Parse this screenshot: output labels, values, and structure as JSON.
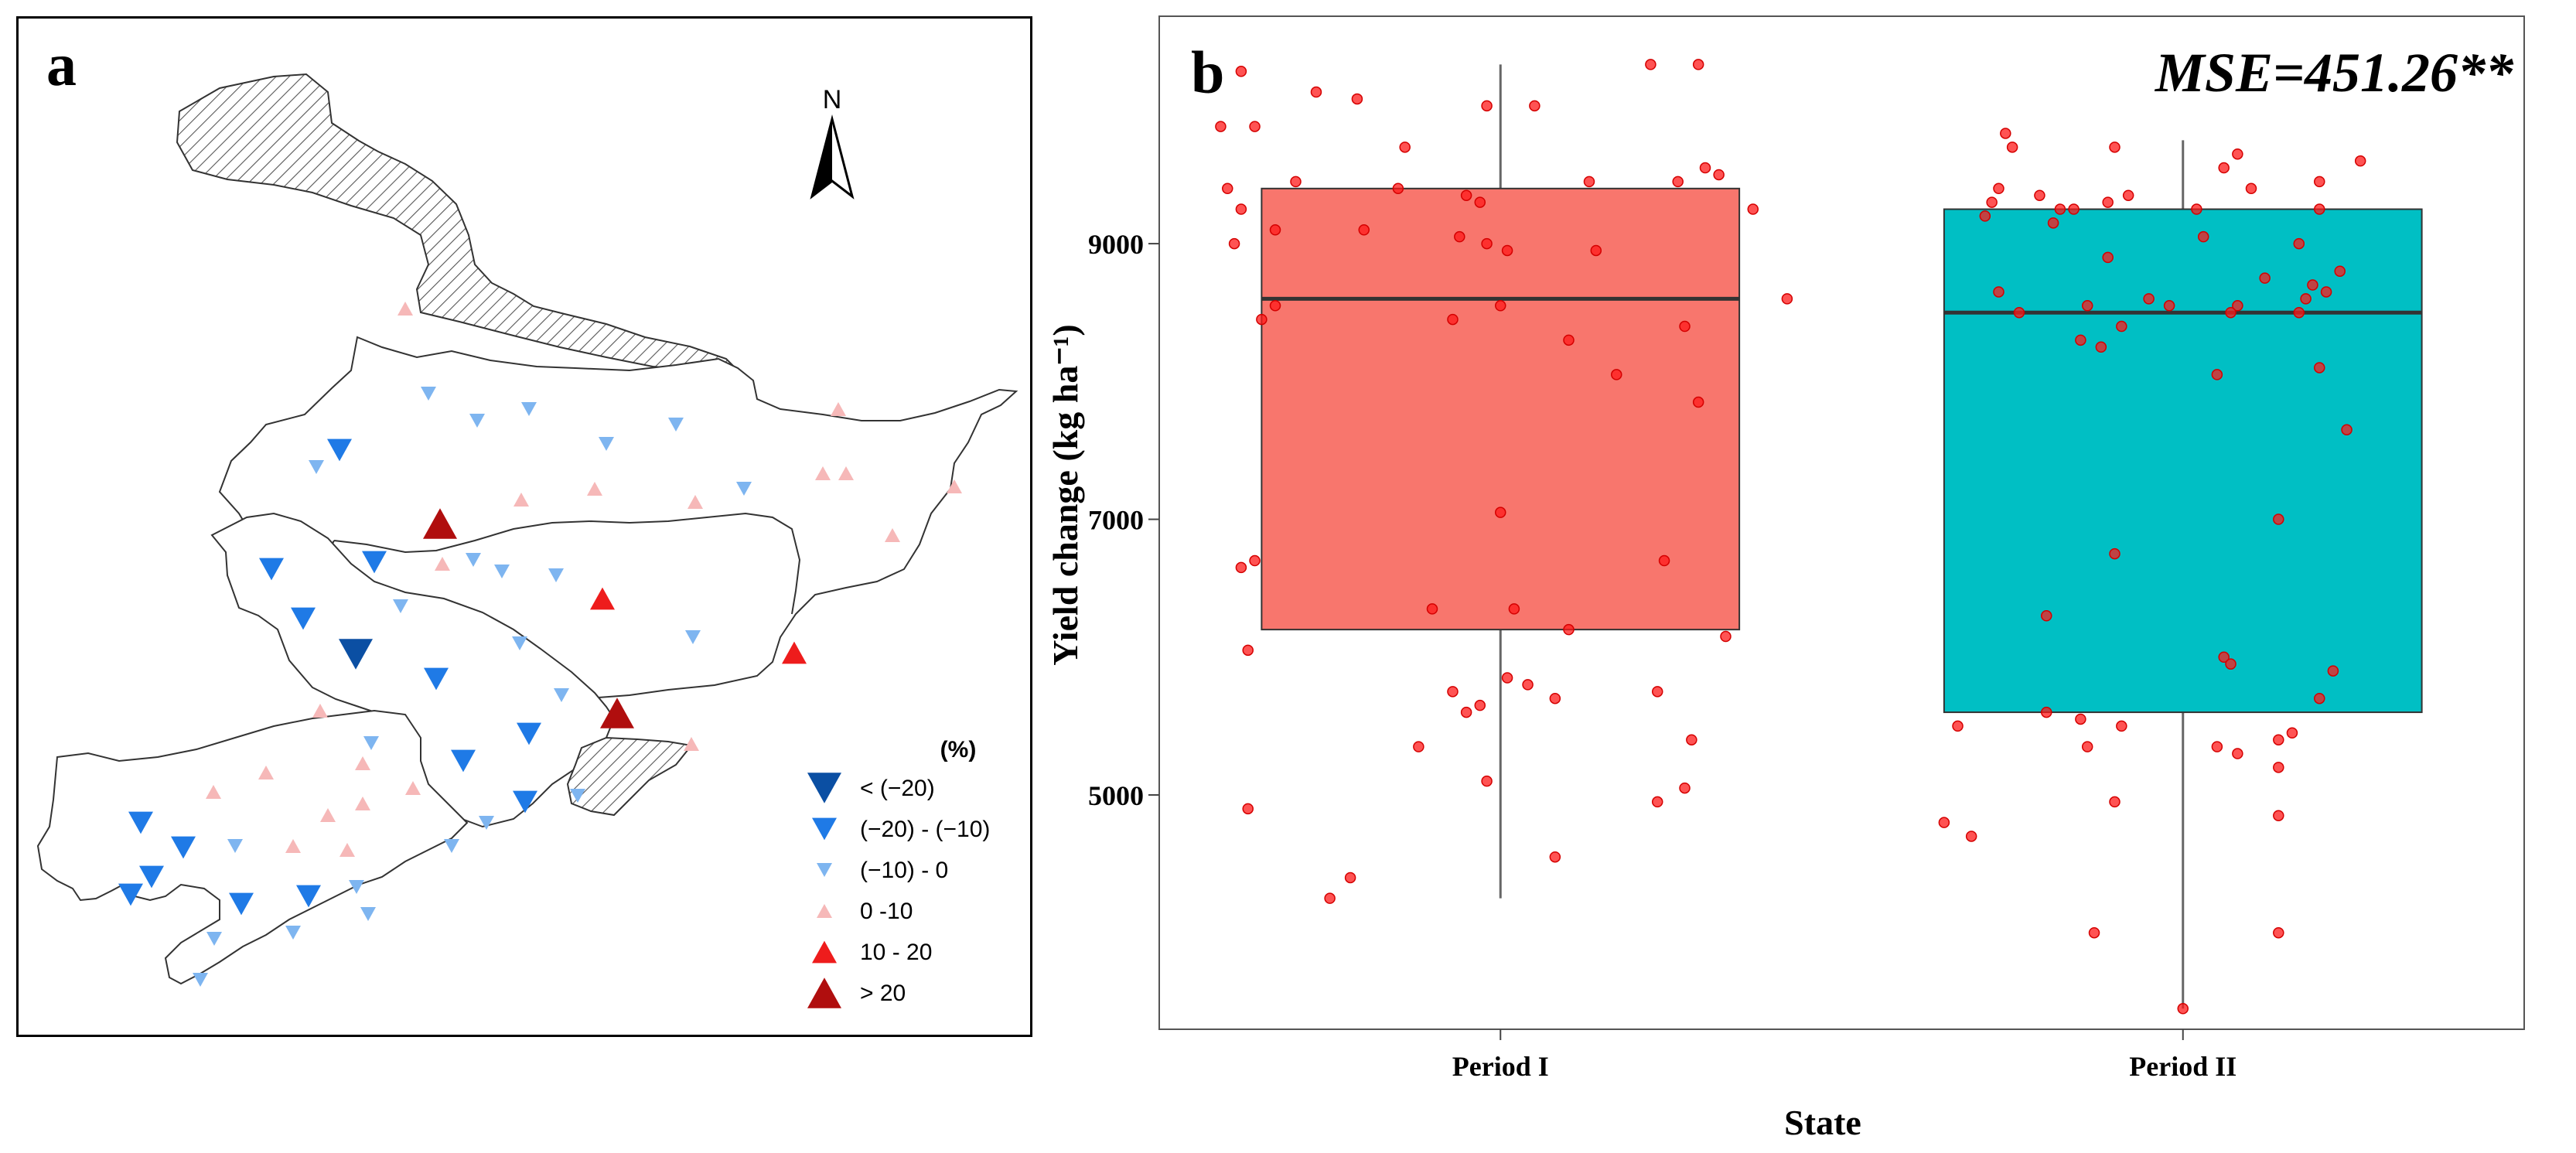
{
  "panel_a": {
    "letter": "a",
    "north_label": "N",
    "legend": {
      "title": "(%)",
      "items": [
        {
          "label": "< (−20)",
          "shape": "down",
          "color": "#0b4fa3",
          "size": "large"
        },
        {
          "label": "(−20) - (−10)",
          "shape": "down",
          "color": "#1f7ae6",
          "size": "medium"
        },
        {
          "label": "(−10) - 0",
          "shape": "down",
          "color": "#7eb5f0",
          "size": "small"
        },
        {
          "label": "0 -10",
          "shape": "up",
          "color": "#f6b8b8",
          "size": "small"
        },
        {
          "label": "10 - 20",
          "shape": "up",
          "color": "#ee1c1c",
          "size": "medium"
        },
        {
          "label": "> 20",
          "shape": "up",
          "color": "#b00e0e",
          "size": "large"
        }
      ]
    }
  },
  "panel_b": {
    "letter": "b",
    "annotation": "MSE=451.26**",
    "colors": {
      "period_1": "#f8766d",
      "period_2": "#00bfc4",
      "point": "#ff1a1a"
    }
  },
  "chart_data": {
    "type": "box",
    "title": "",
    "xlabel": "State",
    "ylabel": "Yield change (kg ha⁻¹)",
    "categories": [
      "Period I",
      "Period II"
    ],
    "y_ticks": [
      5000,
      7000,
      9000
    ],
    "ylim": [
      3300,
      10650
    ],
    "boxes": [
      {
        "name": "Period I",
        "q1": 6200,
        "median": 8600,
        "q3": 9400,
        "whisker_low": 4250,
        "whisker_high": 10300
      },
      {
        "name": "Period II",
        "q1": 5600,
        "median": 8500,
        "q3": 9250,
        "whisker_low": 3450,
        "whisker_high": 9750
      }
    ],
    "points": [
      [
        [
          -0.38,
          10250
        ],
        [
          -0.27,
          10100
        ],
        [
          -0.21,
          10050
        ],
        [
          -0.02,
          10000
        ],
        [
          0.05,
          10000
        ],
        [
          0.22,
          10300
        ],
        [
          0.29,
          10300
        ],
        [
          -0.41,
          9850
        ],
        [
          -0.36,
          9850
        ],
        [
          -0.14,
          9700
        ],
        [
          0.3,
          9550
        ],
        [
          0.32,
          9500
        ],
        [
          -0.4,
          9400
        ],
        [
          -0.3,
          9450
        ],
        [
          -0.15,
          9400
        ],
        [
          -0.05,
          9350
        ],
        [
          -0.03,
          9300
        ],
        [
          0.13,
          9450
        ],
        [
          0.26,
          9450
        ],
        [
          -0.38,
          9250
        ],
        [
          0.37,
          9250
        ],
        [
          -0.33,
          9100
        ],
        [
          -0.2,
          9100
        ],
        [
          -0.06,
          9050
        ],
        [
          -0.02,
          9000
        ],
        [
          0.01,
          8950
        ],
        [
          0.14,
          8950
        ],
        [
          -0.39,
          9000
        ],
        [
          -0.33,
          8550
        ],
        [
          0.0,
          8550
        ],
        [
          0.27,
          8400
        ],
        [
          0.42,
          8600
        ],
        [
          -0.35,
          8450
        ],
        [
          -0.07,
          8450
        ],
        [
          0.1,
          8300
        ],
        [
          0.17,
          8050
        ],
        [
          0.29,
          7850
        ],
        [
          0.0,
          7050
        ],
        [
          -0.38,
          6650
        ],
        [
          -0.36,
          6700
        ],
        [
          0.24,
          6700
        ],
        [
          -0.1,
          6350
        ],
        [
          0.02,
          6350
        ],
        [
          0.1,
          6200
        ],
        [
          0.33,
          6150
        ],
        [
          -0.37,
          6050
        ],
        [
          0.01,
          5850
        ],
        [
          0.04,
          5800
        ],
        [
          -0.07,
          5750
        ],
        [
          -0.03,
          5650
        ],
        [
          0.08,
          5700
        ],
        [
          0.23,
          5750
        ],
        [
          -0.05,
          5600
        ],
        [
          0.28,
          5400
        ],
        [
          -0.12,
          5350
        ],
        [
          0.27,
          5050
        ],
        [
          -0.02,
          5100
        ],
        [
          0.23,
          4950
        ],
        [
          -0.37,
          4900
        ],
        [
          0.08,
          4550
        ],
        [
          -0.22,
          4400
        ],
        [
          -0.25,
          4250
        ]
      ],
      [
        [
          -0.26,
          9800
        ],
        [
          -0.25,
          9700
        ],
        [
          -0.1,
          9700
        ],
        [
          0.08,
          9650
        ],
        [
          0.26,
          9600
        ],
        [
          0.06,
          9550
        ],
        [
          -0.27,
          9400
        ],
        [
          -0.21,
          9350
        ],
        [
          0.2,
          9450
        ],
        [
          0.1,
          9400
        ],
        [
          -0.28,
          9300
        ],
        [
          -0.16,
          9250
        ],
        [
          -0.29,
          9200
        ],
        [
          -0.18,
          9250
        ],
        [
          -0.11,
          9300
        ],
        [
          -0.08,
          9350
        ],
        [
          0.02,
          9250
        ],
        [
          0.2,
          9250
        ],
        [
          -0.19,
          9150
        ],
        [
          0.03,
          9050
        ],
        [
          0.17,
          9000
        ],
        [
          -0.11,
          8900
        ],
        [
          0.23,
          8800
        ],
        [
          0.12,
          8750
        ],
        [
          0.19,
          8700
        ],
        [
          -0.27,
          8650
        ],
        [
          0.21,
          8650
        ],
        [
          0.18,
          8600
        ],
        [
          -0.05,
          8600
        ],
        [
          -0.02,
          8550
        ],
        [
          0.08,
          8550
        ],
        [
          -0.24,
          8500
        ],
        [
          -0.14,
          8550
        ],
        [
          0.07,
          8500
        ],
        [
          0.17,
          8500
        ],
        [
          -0.09,
          8400
        ],
        [
          -0.15,
          8300
        ],
        [
          -0.12,
          8250
        ],
        [
          0.2,
          8100
        ],
        [
          0.05,
          8050
        ],
        [
          0.24,
          7650
        ],
        [
          0.14,
          7000
        ],
        [
          -0.1,
          6750
        ],
        [
          -0.2,
          6300
        ],
        [
          0.06,
          6000
        ],
        [
          0.07,
          5950
        ],
        [
          0.22,
          5900
        ],
        [
          0.2,
          5700
        ],
        [
          -0.2,
          5600
        ],
        [
          -0.15,
          5550
        ],
        [
          -0.09,
          5500
        ],
        [
          -0.33,
          5500
        ],
        [
          0.16,
          5450
        ],
        [
          0.14,
          5400
        ],
        [
          -0.14,
          5350
        ],
        [
          0.05,
          5350
        ],
        [
          0.08,
          5300
        ],
        [
          0.14,
          5200
        ],
        [
          -0.35,
          4800
        ],
        [
          -0.31,
          4700
        ],
        [
          -0.1,
          4950
        ],
        [
          0.14,
          4850
        ],
        [
          -0.13,
          4000
        ],
        [
          0.14,
          4000
        ],
        [
          0.0,
          3450
        ]
      ]
    ]
  }
}
